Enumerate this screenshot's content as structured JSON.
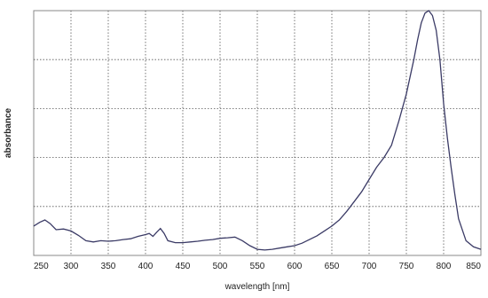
{
  "chart_data": {
    "type": "line",
    "title": "",
    "xlabel": "wavelength [nm]",
    "ylabel": "absorbance",
    "xlim": [
      250,
      850
    ],
    "ylim": [
      0,
      1
    ],
    "xticks": [
      "250",
      "300",
      "350",
      "400",
      "450",
      "500",
      "550",
      "600",
      "650",
      "700",
      "750",
      "800",
      "850"
    ],
    "grid": true,
    "legend": "none",
    "line_color": "#3b3b66",
    "series": [
      {
        "x": [
          250,
          258,
          265,
          272,
          280,
          290,
          300,
          310,
          320,
          330,
          340,
          350,
          360,
          370,
          380,
          390,
          400,
          405,
          410,
          415,
          420,
          425,
          430,
          440,
          450,
          460,
          470,
          480,
          490,
          500,
          510,
          520,
          530,
          540,
          550,
          560,
          570,
          580,
          590,
          600,
          610,
          620,
          630,
          640,
          650,
          660,
          670,
          680,
          690,
          700,
          710,
          720,
          730,
          740,
          750,
          760,
          765,
          770,
          775,
          780,
          785,
          790,
          795,
          800,
          805,
          810,
          815,
          820,
          830,
          840,
          850
        ],
        "y": [
          0.12,
          0.135,
          0.145,
          0.13,
          0.105,
          0.108,
          0.1,
          0.082,
          0.06,
          0.055,
          0.06,
          0.058,
          0.06,
          0.065,
          0.068,
          0.078,
          0.085,
          0.09,
          0.078,
          0.095,
          0.11,
          0.09,
          0.06,
          0.052,
          0.052,
          0.055,
          0.058,
          0.062,
          0.065,
          0.07,
          0.072,
          0.075,
          0.06,
          0.04,
          0.025,
          0.022,
          0.025,
          0.03,
          0.035,
          0.04,
          0.05,
          0.065,
          0.08,
          0.1,
          0.12,
          0.145,
          0.18,
          0.22,
          0.26,
          0.31,
          0.36,
          0.4,
          0.45,
          0.55,
          0.66,
          0.8,
          0.88,
          0.95,
          0.99,
          1.0,
          0.98,
          0.92,
          0.8,
          0.62,
          0.48,
          0.36,
          0.25,
          0.15,
          0.06,
          0.035,
          0.025
        ]
      }
    ]
  }
}
